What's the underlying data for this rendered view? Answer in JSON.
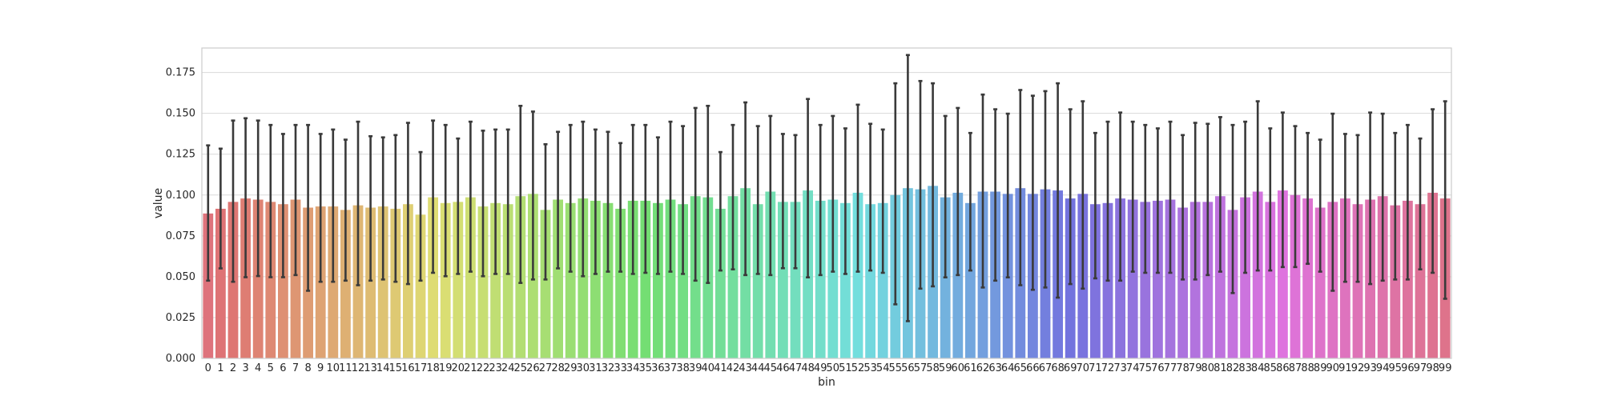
{
  "chart_data": {
    "type": "bar",
    "xlabel": "bin",
    "ylabel": "value",
    "ylim": [
      0,
      0.19
    ],
    "yticks": [
      "0.000",
      "0.025",
      "0.050",
      "0.075",
      "0.100",
      "0.125",
      "0.150",
      "0.175"
    ],
    "grid": "horizontal",
    "palette": "husl rainbow (pink → orange → olive → green → teal → blue → purple → pink)",
    "error_bar_color": "#3a3a3a",
    "categories": [
      "0",
      "1",
      "2",
      "3",
      "4",
      "5",
      "6",
      "7",
      "8",
      "9",
      "10",
      "11",
      "12",
      "13",
      "14",
      "15",
      "16",
      "17",
      "18",
      "19",
      "20",
      "21",
      "22",
      "23",
      "24",
      "25",
      "26",
      "27",
      "28",
      "29",
      "30",
      "31",
      "32",
      "33",
      "34",
      "35",
      "36",
      "37",
      "38",
      "39",
      "40",
      "41",
      "42",
      "43",
      "44",
      "45",
      "46",
      "47",
      "48",
      "49",
      "50",
      "51",
      "52",
      "53",
      "54",
      "55",
      "56",
      "57",
      "58",
      "59",
      "60",
      "61",
      "62",
      "63",
      "64",
      "65",
      "66",
      "67",
      "68",
      "69",
      "70",
      "71",
      "72",
      "73",
      "74",
      "75",
      "76",
      "77",
      "78",
      "79",
      "80",
      "81",
      "82",
      "83",
      "84",
      "85",
      "86",
      "87",
      "88",
      "89",
      "90",
      "91",
      "92",
      "93",
      "94",
      "95",
      "96",
      "97",
      "98",
      "99"
    ],
    "values": [
      0.0887,
      0.0916,
      0.0958,
      0.0979,
      0.0972,
      0.0958,
      0.0944,
      0.0972,
      0.0923,
      0.093,
      0.093,
      0.0909,
      0.0937,
      0.0923,
      0.093,
      0.0916,
      0.0944,
      0.088,
      0.0986,
      0.0951,
      0.0958,
      0.0986,
      0.093,
      0.0951,
      0.0944,
      0.0993,
      0.1007,
      0.0909,
      0.0972,
      0.0951,
      0.0979,
      0.0965,
      0.0951,
      0.0916,
      0.0965,
      0.0965,
      0.0951,
      0.0972,
      0.0944,
      0.0993,
      0.0986,
      0.0916,
      0.0993,
      0.1042,
      0.0944,
      0.1021,
      0.0958,
      0.0958,
      0.1028,
      0.0965,
      0.0972,
      0.0951,
      0.1014,
      0.0944,
      0.0951,
      0.1,
      0.1042,
      0.1035,
      0.1056,
      0.0986,
      0.1014,
      0.0951,
      0.1021,
      0.1021,
      0.1007,
      0.1042,
      0.1007,
      0.1035,
      0.1028,
      0.0979,
      0.1007,
      0.0944,
      0.0951,
      0.0979,
      0.0972,
      0.0958,
      0.0965,
      0.0972,
      0.0923,
      0.0958,
      0.0958,
      0.0993,
      0.0909,
      0.0986,
      0.1021,
      0.0958,
      0.1028,
      0.1,
      0.0979,
      0.0923,
      0.0958,
      0.0979,
      0.0944,
      0.0972,
      0.0993,
      0.0937,
      0.0965,
      0.0944,
      0.1014,
      0.0979
    ],
    "err_low": [
      0.0476,
      0.0551,
      0.0469,
      0.0497,
      0.0504,
      0.0497,
      0.0497,
      0.051,
      0.0414,
      0.0469,
      0.0469,
      0.0476,
      0.0448,
      0.0476,
      0.0483,
      0.0469,
      0.0455,
      0.0476,
      0.0524,
      0.0503,
      0.0517,
      0.0531,
      0.0503,
      0.0517,
      0.0517,
      0.0462,
      0.0483,
      0.0483,
      0.0551,
      0.0531,
      0.0503,
      0.0517,
      0.0531,
      0.0531,
      0.0517,
      0.0524,
      0.0517,
      0.0531,
      0.0517,
      0.0476,
      0.0462,
      0.0538,
      0.0545,
      0.051,
      0.0517,
      0.051,
      0.0552,
      0.0552,
      0.0496,
      0.051,
      0.0531,
      0.0517,
      0.0531,
      0.0538,
      0.0524,
      0.0331,
      0.0228,
      0.0427,
      0.0441,
      0.0496,
      0.051,
      0.0538,
      0.0434,
      0.0476,
      0.0496,
      0.0448,
      0.042,
      0.0434,
      0.0372,
      0.0455,
      0.0427,
      0.049,
      0.0476,
      0.0476,
      0.0531,
      0.0524,
      0.0524,
      0.0524,
      0.0483,
      0.0483,
      0.051,
      0.0531,
      0.04,
      0.0524,
      0.0538,
      0.0538,
      0.0559,
      0.0559,
      0.0579,
      0.0531,
      0.0414,
      0.0469,
      0.0469,
      0.0455,
      0.0476,
      0.0483,
      0.0483,
      0.0545,
      0.0524,
      0.0365
    ],
    "err_high": [
      0.1304,
      0.1284,
      0.1456,
      0.147,
      0.1456,
      0.1429,
      0.1374,
      0.1429,
      0.1429,
      0.1374,
      0.1401,
      0.1339,
      0.1449,
      0.136,
      0.1353,
      0.1367,
      0.1442,
      0.1263,
      0.1456,
      0.1429,
      0.1346,
      0.1449,
      0.1394,
      0.1401,
      0.1401,
      0.1546,
      0.1511,
      0.1311,
      0.1387,
      0.1429,
      0.1449,
      0.1401,
      0.1387,
      0.1318,
      0.1429,
      0.1429,
      0.1353,
      0.1449,
      0.1422,
      0.1533,
      0.1546,
      0.1263,
      0.1429,
      0.1567,
      0.1422,
      0.1484,
      0.1374,
      0.1367,
      0.1588,
      0.1429,
      0.1484,
      0.1408,
      0.1553,
      0.1436,
      0.1401,
      0.1684,
      0.1857,
      0.1698,
      0.1684,
      0.1484,
      0.1533,
      0.138,
      0.1615,
      0.1525,
      0.1498,
      0.1643,
      0.1608,
      0.1636,
      0.1684,
      0.1525,
      0.1574,
      0.138,
      0.1449,
      0.1505,
      0.1449,
      0.1429,
      0.1408,
      0.1449,
      0.1367,
      0.1442,
      0.1436,
      0.1477,
      0.1429,
      0.1449,
      0.1574,
      0.1408,
      0.1505,
      0.1422,
      0.138,
      0.1339,
      0.1498,
      0.1374,
      0.1367,
      0.1505,
      0.1498,
      0.138,
      0.1429,
      0.1346,
      0.1525,
      0.1574
    ]
  }
}
